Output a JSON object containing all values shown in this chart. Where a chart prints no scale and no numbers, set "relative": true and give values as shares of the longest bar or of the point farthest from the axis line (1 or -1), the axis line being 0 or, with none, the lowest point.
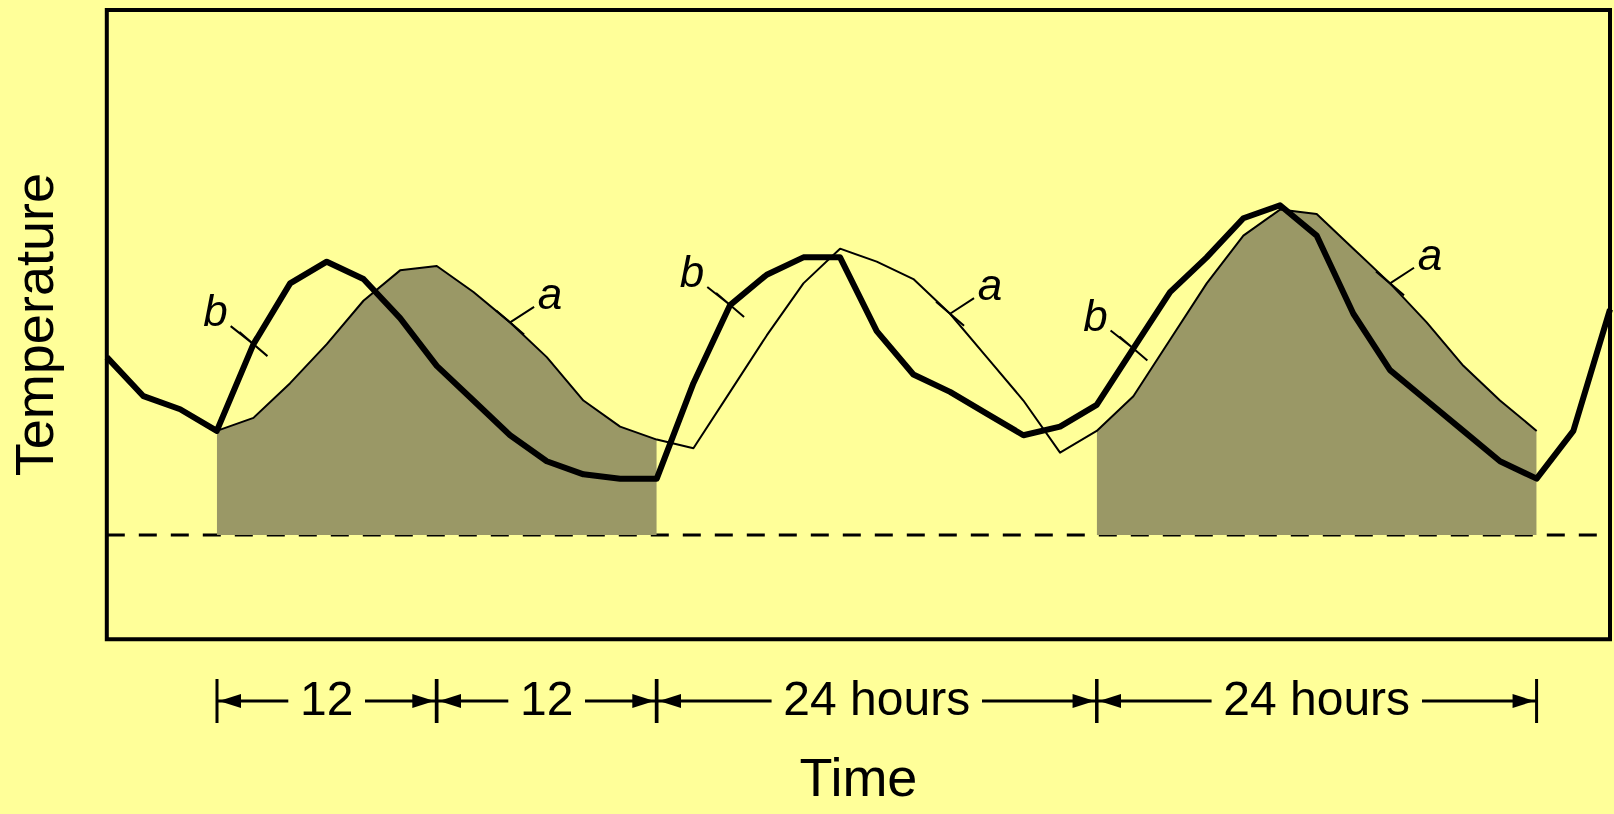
{
  "chart_data": {
    "type": "line",
    "relative": true,
    "xlabel": "Time",
    "ylabel": "Temperature",
    "grid": false,
    "tick_labels": false,
    "marker": "none",
    "categories": [
      null,
      null,
      null,
      null,
      null,
      null,
      null,
      null,
      null,
      null,
      null,
      null,
      null,
      null,
      null,
      null,
      null,
      null,
      null,
      null,
      null,
      null,
      null,
      null,
      null,
      null,
      null,
      null,
      null,
      null,
      null,
      null,
      null,
      null,
      null,
      null,
      null,
      null,
      null,
      null,
      null,
      null
    ],
    "series": [
      {
        "name": "b",
        "color": "#000000",
        "values": [
          0.65,
          0.56,
          0.53,
          0.48,
          0.68,
          0.82,
          0.87,
          0.83,
          0.74,
          0.63,
          0.55,
          0.47,
          0.41,
          0.38,
          0.37,
          0.37,
          0.59,
          0.77,
          0.84,
          0.88,
          0.88,
          0.71,
          0.61,
          0.57,
          0.52,
          0.47,
          0.49,
          0.54,
          0.67,
          0.8,
          0.88,
          0.97,
          1,
          0.93,
          0.75,
          0.62,
          0.55,
          0.48,
          0.41,
          0.37,
          0.48,
          0.76
        ]
      },
      {
        "name": "a",
        "color": "#000000",
        "values": [
          null,
          null,
          null,
          0.48,
          0.51,
          0.59,
          0.68,
          0.78,
          0.85,
          0.86,
          0.8,
          0.73,
          0.65,
          0.55,
          0.49,
          0.46,
          0.44,
          0.57,
          0.7,
          0.82,
          0.9,
          0.87,
          0.83,
          0.75,
          0.65,
          0.55,
          0.43,
          0.48,
          0.56,
          0.69,
          0.82,
          0.93,
          0.99,
          0.98,
          0.9,
          0.82,
          0.73,
          0.63,
          0.55,
          0.48,
          null,
          null
        ]
      },
      {
        "type": "area",
        "color": "#9a9866",
        "values": [
          null,
          null,
          null,
          0.48,
          0.51,
          0.59,
          0.68,
          0.78,
          0.85,
          0.86,
          0.8,
          0.73,
          0.65,
          0.55,
          0.49,
          0.46,
          null,
          null,
          null,
          null,
          null,
          null,
          null,
          null,
          null,
          null,
          null,
          0.48,
          0.56,
          0.69,
          0.82,
          0.93,
          0.99,
          0.98,
          0.9,
          0.82,
          0.73,
          0.63,
          0.55,
          0.48,
          null,
          null
        ]
      }
    ],
    "ref_lines": [
      {
        "axis": "y",
        "value": 0.24,
        "color": "#000000",
        "line_style": "dashed"
      }
    ],
    "annotations": [
      "12",
      "12",
      "24 hours",
      "24 hours"
    ]
  }
}
